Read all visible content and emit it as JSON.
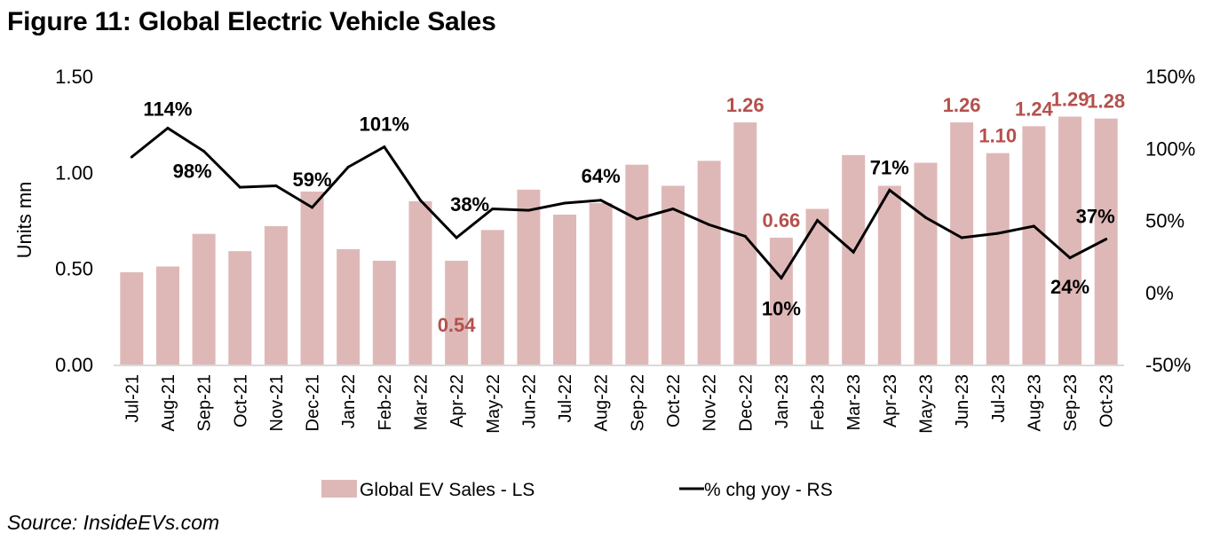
{
  "title": "Figure 11: Global Electric Vehicle Sales",
  "source": "Source: InsideEVs.com",
  "colors": {
    "bar": "#DEB8B7",
    "line": "#000000",
    "bar_label": "#B5504C",
    "axis": "#D9D9D9"
  },
  "chart_data": {
    "type": "bar",
    "title": "Figure 11: Global Electric Vehicle Sales",
    "xlabel": "",
    "ylabel": "Units mn",
    "ylim": [
      0,
      1.5
    ],
    "yticks": [
      "0.00",
      "0.50",
      "1.00",
      "1.50"
    ],
    "y2lim": [
      -50,
      150
    ],
    "y2ticks": [
      "-50%",
      "0%",
      "50%",
      "100%",
      "150%"
    ],
    "grid": false,
    "legend_position": "bottom",
    "categories": [
      "Jul-21",
      "Aug-21",
      "Sep-21",
      "Oct-21",
      "Nov-21",
      "Dec-21",
      "Jan-22",
      "Feb-22",
      "Mar-22",
      "Apr-22",
      "May-22",
      "Jun-22",
      "Jul-22",
      "Aug-22",
      "Sep-22",
      "Oct-22",
      "Nov-22",
      "Dec-22",
      "Jan-23",
      "Feb-23",
      "Mar-23",
      "Apr-23",
      "May-23",
      "Jun-23",
      "Jul-23",
      "Aug-23",
      "Sep-23",
      "Oct-23"
    ],
    "series": [
      {
        "name": "Global EV Sales - LS",
        "type": "bar",
        "axis": "left",
        "values": [
          0.48,
          0.51,
          0.68,
          0.59,
          0.72,
          0.9,
          0.6,
          0.54,
          0.85,
          0.54,
          0.7,
          0.91,
          0.78,
          0.84,
          1.04,
          0.93,
          1.06,
          1.26,
          0.66,
          0.81,
          1.09,
          0.93,
          1.05,
          1.26,
          1.1,
          1.24,
          1.29,
          1.28
        ],
        "labels": [
          {
            "index": 9,
            "text": "0.54"
          },
          {
            "index": 17,
            "text": "1.26"
          },
          {
            "index": 18,
            "text": "0.66"
          },
          {
            "index": 23,
            "text": "1.26"
          },
          {
            "index": 24,
            "text": "1.10"
          },
          {
            "index": 25,
            "text": "1.24"
          },
          {
            "index": 26,
            "text": "1.29"
          },
          {
            "index": 27,
            "text": "1.28"
          }
        ]
      },
      {
        "name": "% chg yoy - RS",
        "type": "line",
        "axis": "right",
        "values": [
          94,
          114,
          98,
          73,
          74,
          59,
          87,
          101,
          64,
          38,
          58,
          57,
          62,
          64,
          51,
          58,
          47,
          39,
          10,
          50,
          28,
          71,
          52,
          38,
          41,
          46,
          24,
          37
        ],
        "labels": [
          {
            "index": 1,
            "text": "114%"
          },
          {
            "index": 2,
            "text": "98%"
          },
          {
            "index": 5,
            "text": "59%"
          },
          {
            "index": 7,
            "text": "101%"
          },
          {
            "index": 9,
            "text": "38%"
          },
          {
            "index": 13,
            "text": "64%"
          },
          {
            "index": 18,
            "text": "10%"
          },
          {
            "index": 21,
            "text": "71%"
          },
          {
            "index": 26,
            "text": "24%"
          },
          {
            "index": 27,
            "text": "37%"
          }
        ]
      }
    ]
  }
}
